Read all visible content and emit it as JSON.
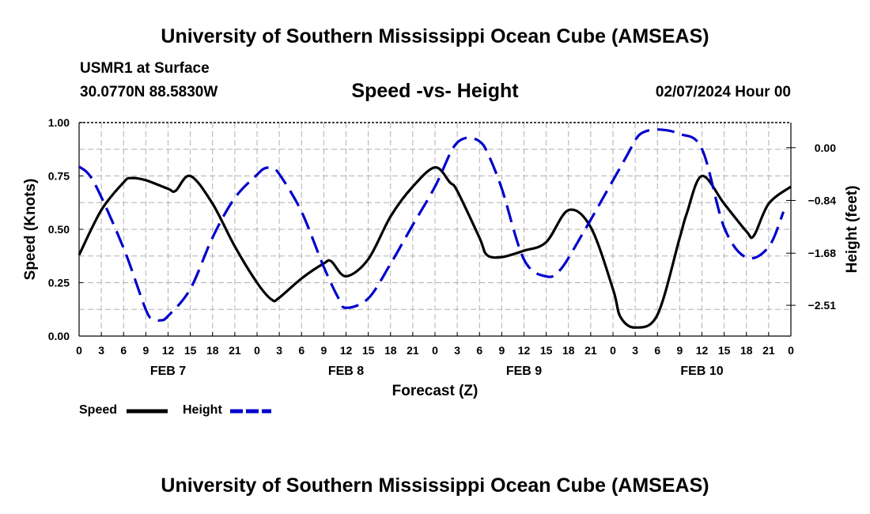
{
  "header": {
    "title": "University of Southern Mississippi Ocean Cube (AMSEAS)",
    "station": "USMR1 at Surface",
    "coords": "30.0770N  88.5830W",
    "chart_title": "Speed -vs- Height",
    "date": "02/07/2024 Hour 00"
  },
  "footer": {
    "title": "University of Southern Mississippi Ocean Cube (AMSEAS)"
  },
  "legend": {
    "speed_label": "Speed",
    "height_label": "Height"
  },
  "colors": {
    "speed": "#000000",
    "height": "#0000cc",
    "grid": "#b0b0b0"
  },
  "chart_data": {
    "type": "line",
    "title": "Speed -vs- Height",
    "xlabel": "Forecast (Z)",
    "ylabel": "Speed (Knots)",
    "y2label": "Height (feet)",
    "ylim": [
      0,
      1
    ],
    "y2lim": [
      -3.0,
      0.4
    ],
    "xlim": [
      0,
      96
    ],
    "grid": true,
    "legend_position": "bottom-left",
    "y_ticks": [
      0,
      0.25,
      0.5,
      0.75,
      1.0
    ],
    "y_tick_labels": [
      "0.00",
      "0.25",
      "0.50",
      "0.75",
      "1.00"
    ],
    "y2_ticks": [
      0.0,
      -0.84,
      -1.68,
      -2.51
    ],
    "y2_tick_labels": [
      "0.00",
      "−0.84",
      "−1.68",
      "−2.51"
    ],
    "x_ticks": [
      0,
      3,
      6,
      9,
      12,
      15,
      18,
      21,
      24,
      27,
      30,
      33,
      36,
      39,
      42,
      45,
      48,
      51,
      54,
      57,
      60,
      63,
      66,
      69,
      72,
      75,
      78,
      81,
      84,
      87,
      90,
      93,
      96
    ],
    "x_tick_labels": [
      "0",
      "3",
      "6",
      "9",
      "12",
      "15",
      "18",
      "21",
      "0",
      "3",
      "6",
      "9",
      "12",
      "15",
      "18",
      "21",
      "0",
      "3",
      "6",
      "9",
      "12",
      "15",
      "18",
      "21",
      "0",
      "3",
      "6",
      "9",
      "12",
      "15",
      "18",
      "21",
      "0"
    ],
    "day_labels": [
      {
        "label": "FEB 7",
        "hour": 12
      },
      {
        "label": "FEB 8",
        "hour": 36
      },
      {
        "label": "FEB 9",
        "hour": 60
      },
      {
        "label": "FEB 10",
        "hour": 84
      }
    ],
    "series": [
      {
        "name": "Speed",
        "axis": "left",
        "x": [
          0,
          3,
          6,
          7,
          9,
          12,
          13,
          15,
          18,
          21,
          24,
          26,
          27,
          30,
          33,
          34,
          36,
          39,
          42,
          45,
          48,
          50,
          51,
          54,
          55,
          57,
          60,
          63,
          66,
          69,
          72,
          73,
          75,
          78,
          81,
          82,
          84,
          87,
          90,
          91,
          93,
          96
        ],
        "values": [
          0.38,
          0.59,
          0.72,
          0.74,
          0.73,
          0.69,
          0.68,
          0.75,
          0.62,
          0.42,
          0.25,
          0.17,
          0.18,
          0.27,
          0.34,
          0.35,
          0.28,
          0.36,
          0.56,
          0.7,
          0.79,
          0.72,
          0.68,
          0.46,
          0.38,
          0.37,
          0.4,
          0.44,
          0.59,
          0.51,
          0.22,
          0.09,
          0.04,
          0.1,
          0.46,
          0.58,
          0.75,
          0.62,
          0.49,
          0.47,
          0.62,
          0.7
        ]
      },
      {
        "name": "Height",
        "axis": "right",
        "x": [
          0,
          2,
          6,
          9,
          10,
          11,
          12,
          15,
          18,
          21,
          24,
          25,
          26,
          27,
          30,
          33,
          35,
          36,
          39,
          42,
          45,
          48,
          50,
          51,
          52,
          53,
          54,
          55,
          57,
          60,
          63,
          65,
          68,
          71,
          74,
          75,
          76,
          78,
          81,
          84,
          87,
          90,
          93,
          95
        ],
        "values": [
          -0.3,
          -0.55,
          -1.6,
          -2.58,
          -2.72,
          -2.75,
          -2.68,
          -2.25,
          -1.43,
          -0.8,
          -0.43,
          -0.33,
          -0.33,
          -0.42,
          -1.02,
          -1.9,
          -2.4,
          -2.55,
          -2.4,
          -1.85,
          -1.23,
          -0.62,
          -0.1,
          0.08,
          0.15,
          0.15,
          0.1,
          -0.06,
          -0.65,
          -1.78,
          -2.05,
          -1.93,
          -1.35,
          -0.73,
          -0.1,
          0.12,
          0.24,
          0.29,
          0.22,
          -0.02,
          -1.27,
          -1.75,
          -1.58,
          -1.02
        ]
      }
    ]
  }
}
